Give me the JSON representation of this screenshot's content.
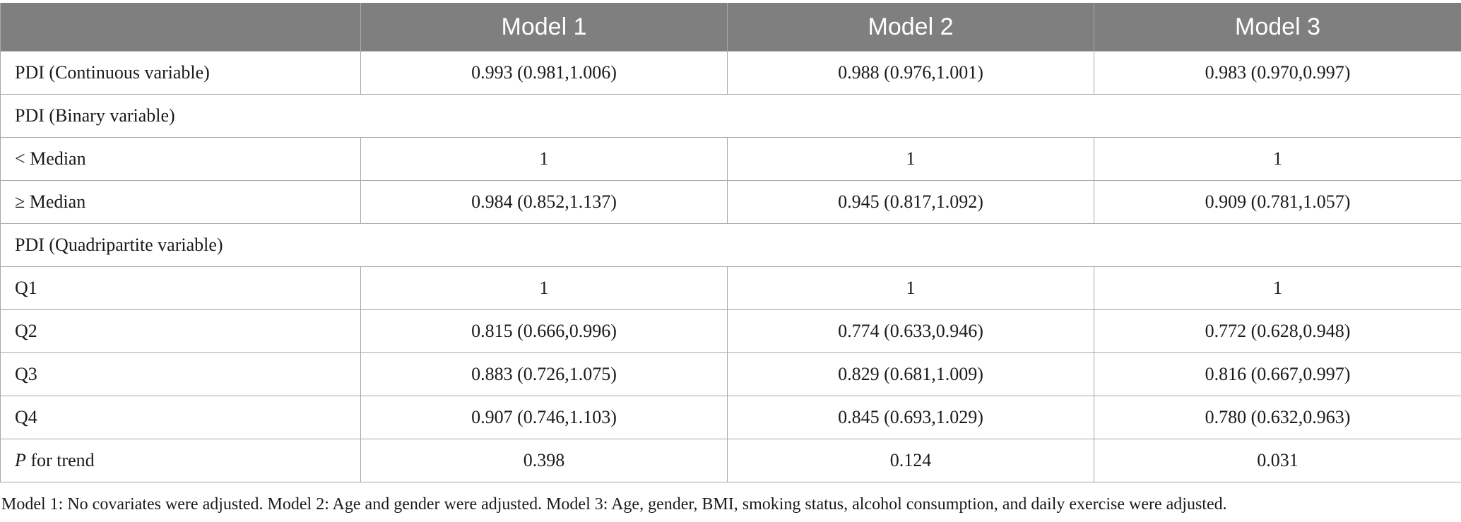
{
  "table": {
    "headers": [
      "",
      "Model 1",
      "Model 2",
      "Model 3"
    ],
    "rows": [
      {
        "type": "data",
        "label": "PDI (Continuous variable)",
        "values": [
          "0.993 (0.981,1.006)",
          "0.988 (0.976,1.001)",
          "0.983 (0.970,0.997)"
        ]
      },
      {
        "type": "section",
        "label": "PDI (Binary variable)"
      },
      {
        "type": "data",
        "label": "< Median",
        "values": [
          "1",
          "1",
          "1"
        ]
      },
      {
        "type": "data",
        "label": "≥ Median",
        "values": [
          "0.984 (0.852,1.137)",
          "0.945 (0.817,1.092)",
          "0.909 (0.781,1.057)"
        ]
      },
      {
        "type": "section",
        "label": "PDI (Quadripartite variable)"
      },
      {
        "type": "data",
        "label": "Q1",
        "values": [
          "1",
          "1",
          "1"
        ]
      },
      {
        "type": "data",
        "label": "Q2",
        "values": [
          "0.815 (0.666,0.996)",
          "0.774 (0.633,0.946)",
          "0.772 (0.628,0.948)"
        ]
      },
      {
        "type": "data",
        "label": "Q3",
        "values": [
          "0.883 (0.726,1.075)",
          "0.829 (0.681,1.009)",
          "0.816 (0.667,0.997)"
        ]
      },
      {
        "type": "data",
        "label": "Q4",
        "values": [
          "0.907 (0.746,1.103)",
          "0.845 (0.693,1.029)",
          "0.780 (0.632,0.963)"
        ]
      },
      {
        "type": "trend",
        "label_italic": "P",
        "label_rest": " for trend",
        "values": [
          "0.398",
          "0.124",
          "0.031"
        ]
      }
    ]
  },
  "footnote": "Model 1: No covariates were adjusted. Model 2: Age and gender were adjusted. Model 3: Age, gender, BMI, smoking status, alcohol consumption, and daily exercise were adjusted.",
  "colors": {
    "header_bg": "#7f7f7f",
    "header_text": "#ffffff",
    "grid": "#a8a8a8"
  }
}
